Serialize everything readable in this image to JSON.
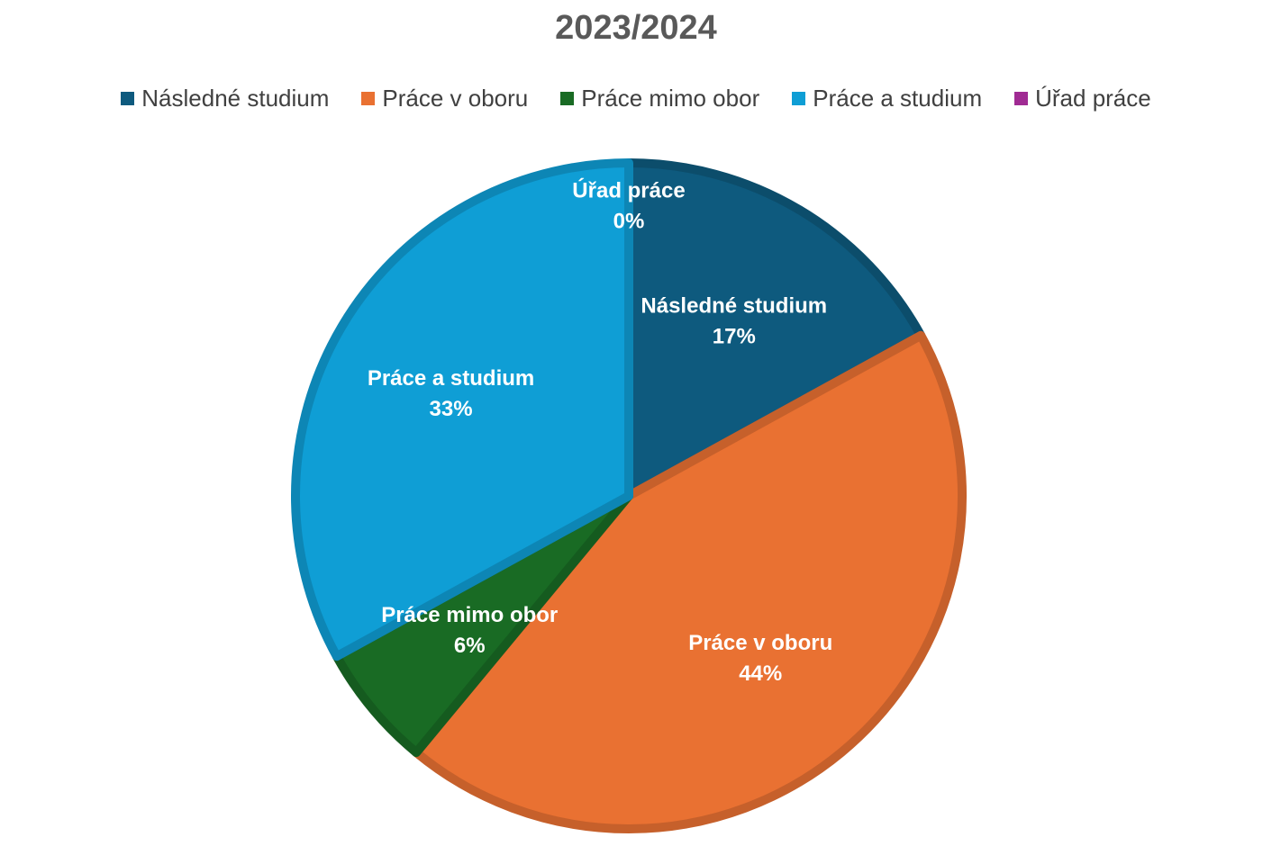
{
  "chart_data": {
    "type": "pie",
    "title": "2023/2024",
    "legend_position": "top",
    "slices": [
      {
        "label": "Následné studium",
        "value": 17,
        "value_label": "17%",
        "color": "#0E5A7E"
      },
      {
        "label": "Práce v oboru",
        "value": 44,
        "value_label": "44%",
        "color": "#E97132"
      },
      {
        "label": "Práce mimo obor",
        "value": 6,
        "value_label": "6%",
        "color": "#196B24"
      },
      {
        "label": "Práce a studium",
        "value": 33,
        "value_label": "33%",
        "color": "#0F9ED5"
      },
      {
        "label": "Úřad práce",
        "value": 0,
        "value_label": "0%",
        "color": "#A02B93"
      }
    ]
  }
}
